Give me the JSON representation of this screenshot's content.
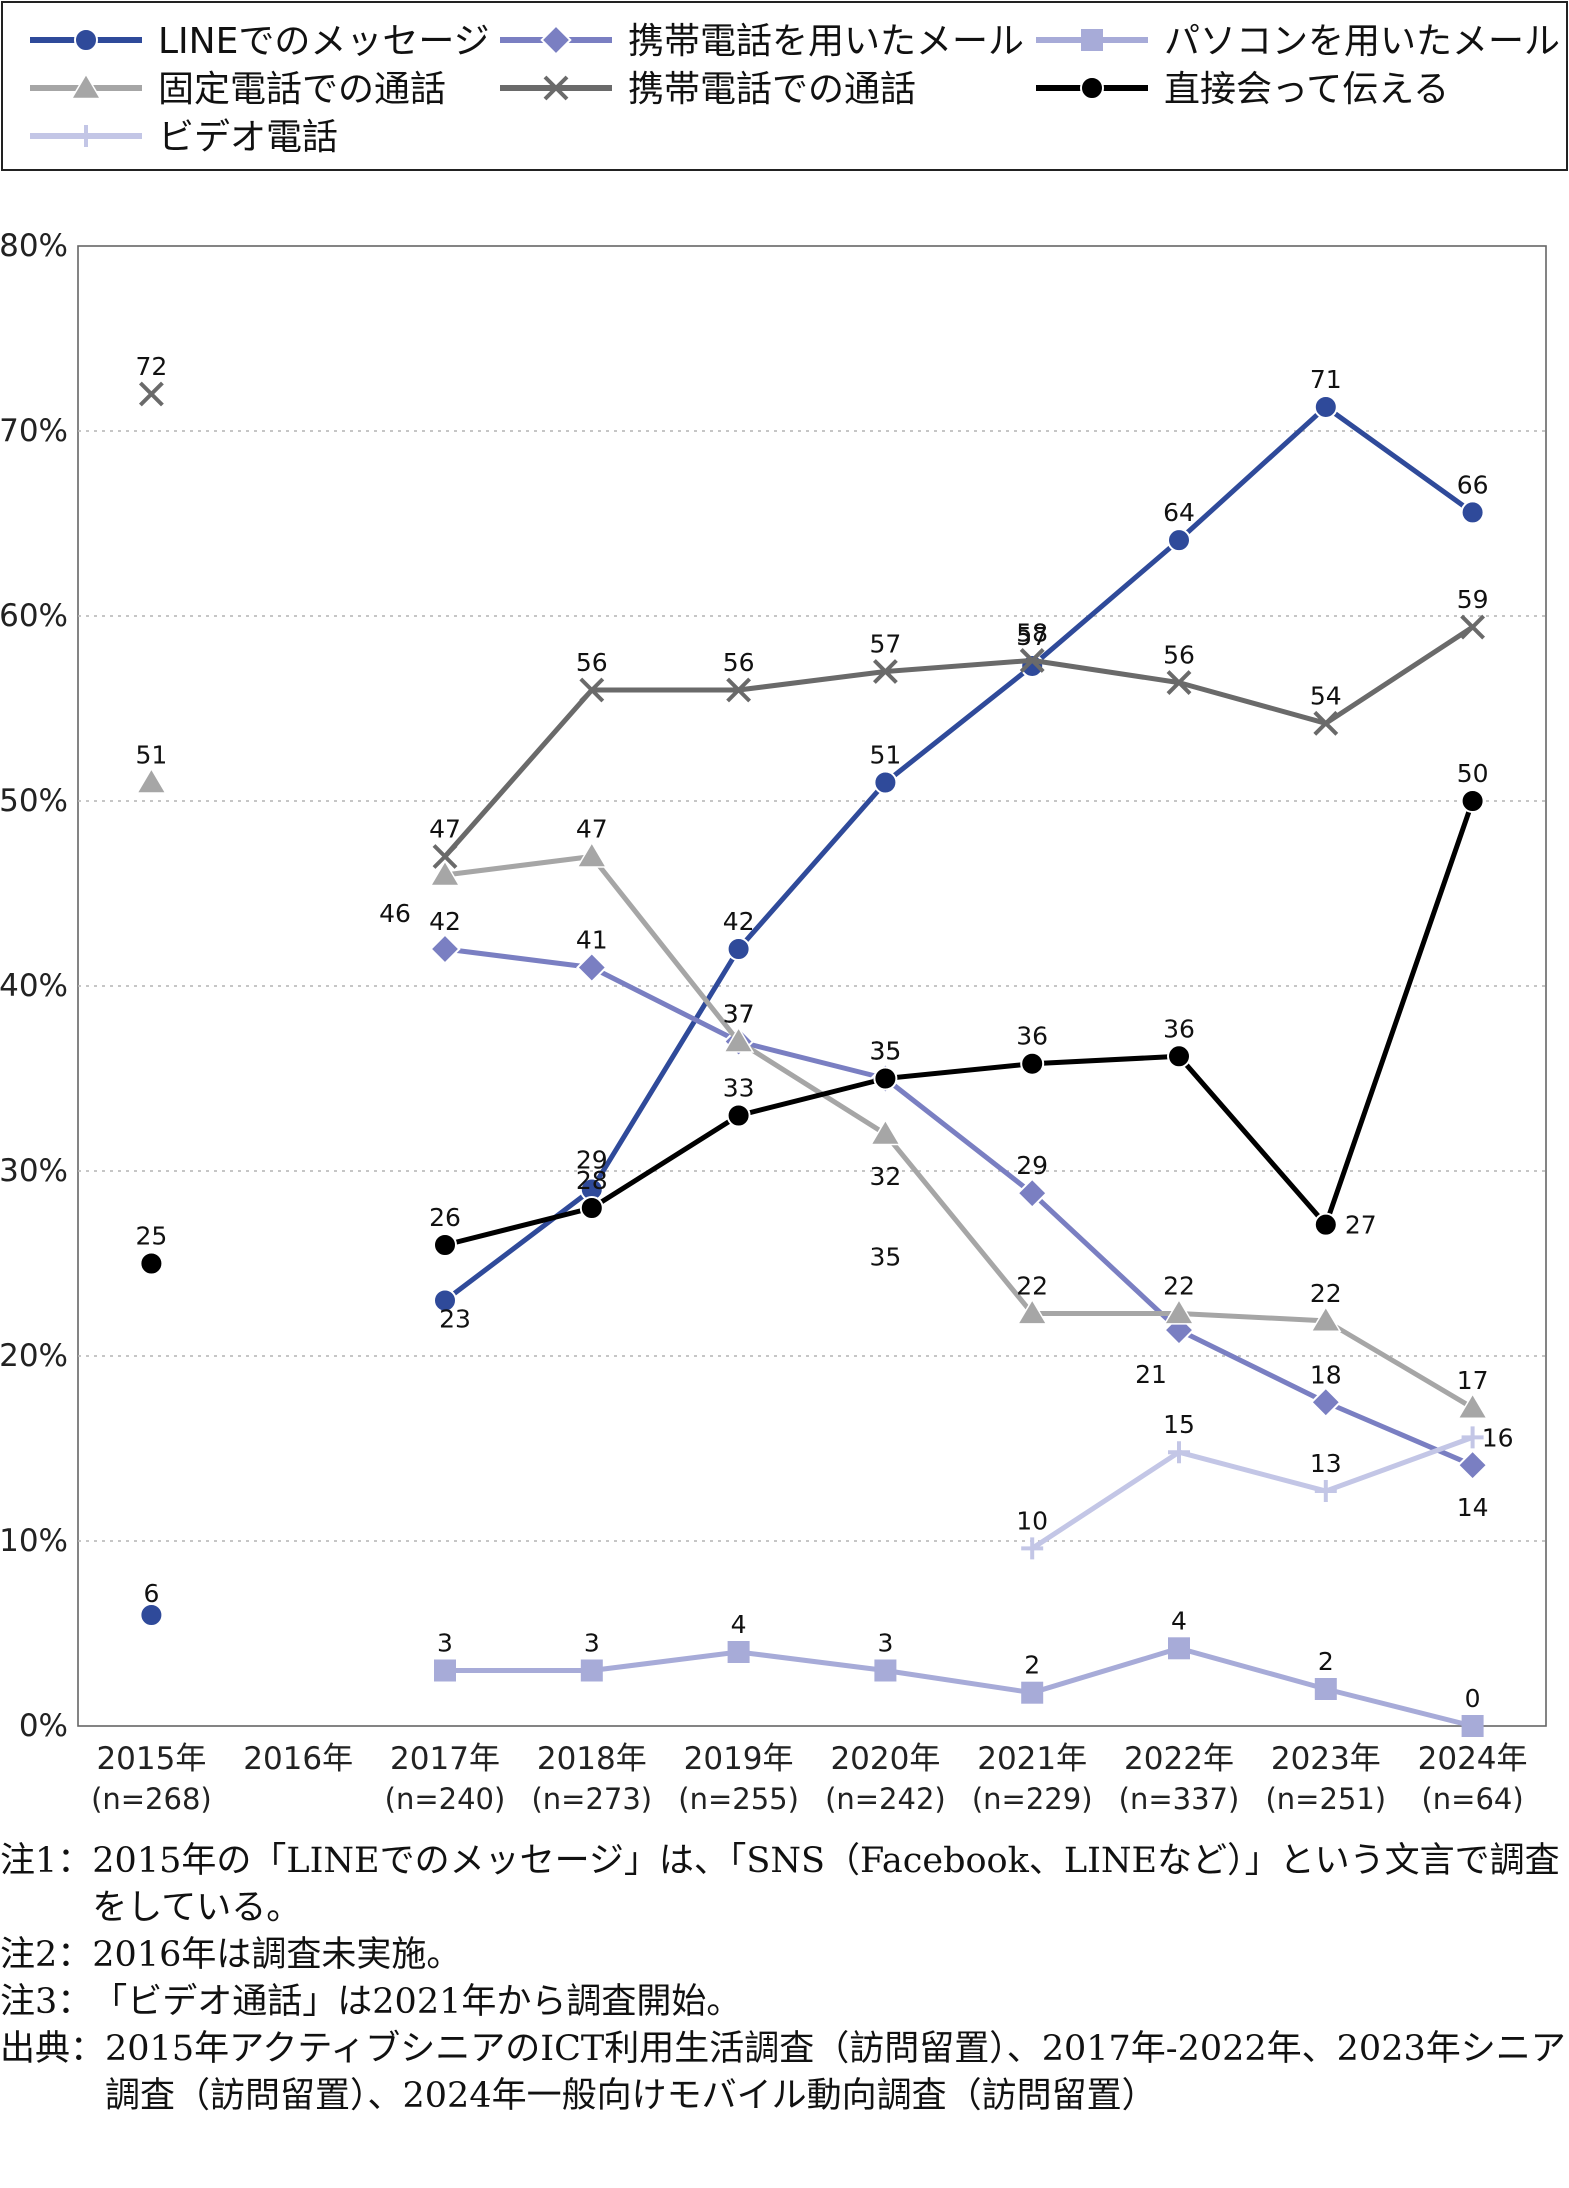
{
  "chart_data": {
    "type": "line",
    "categories": [
      "2015年",
      "2016年",
      "2017年",
      "2018年",
      "2019年",
      "2020年",
      "2021年",
      "2022年",
      "2023年",
      "2024年"
    ],
    "category_sublabels": [
      "(n=268)",
      "",
      "(n=240)",
      "(n=273)",
      "(n=255)",
      "(n=242)",
      "(n=229)",
      "(n=337)",
      "(n=251)",
      "(n=64)"
    ],
    "ylim": [
      0,
      80
    ],
    "y_ticks": [
      "0%",
      "10%",
      "20%",
      "30%",
      "40%",
      "50%",
      "60%",
      "70%",
      "80%"
    ],
    "grid": true,
    "legend_position": "top",
    "series": [
      {
        "name": "LINEでのメッセージ",
        "color": "#2f4a9a",
        "marker": "circle",
        "values": [
          6,
          null,
          23,
          29,
          42,
          51,
          57.3,
          64.1,
          71.3,
          65.6
        ],
        "labels": [
          "6",
          "",
          "23",
          "29",
          "42",
          "51",
          "57",
          "64",
          "71",
          "66"
        ]
      },
      {
        "name": "携帯電話を用いたメール",
        "color": "#7a7fc2",
        "marker": "diamond",
        "values": [
          null,
          null,
          42,
          41,
          37,
          35,
          28.8,
          21.4,
          17.5,
          14.1
        ],
        "labels": [
          "",
          "",
          "42",
          "41",
          "37",
          "35",
          "29",
          "21",
          "18",
          "14"
        ]
      },
      {
        "name": "パソコンを用いたメール",
        "color": "#a7abd8",
        "marker": "square",
        "values": [
          null,
          null,
          3,
          3,
          4,
          3,
          1.8,
          4.2,
          2,
          0
        ],
        "labels": [
          "",
          "",
          "3",
          "3",
          "4",
          "3",
          "2",
          "4",
          "2",
          "0"
        ]
      },
      {
        "name": "固定電話での通話",
        "color": "#a6a6a6",
        "marker": "triangle",
        "values": [
          51,
          null,
          46,
          47,
          37,
          32,
          22.3,
          22.3,
          21.9,
          17.2
        ],
        "labels": [
          "51",
          "",
          "46",
          "47",
          "37",
          "32",
          "22",
          "22",
          "22",
          "17"
        ]
      },
      {
        "name": "携帯電話での通話",
        "color": "#6a6a6a",
        "marker": "x",
        "values": [
          72,
          null,
          47,
          56,
          56,
          57,
          57.6,
          56.4,
          54.2,
          59.4
        ],
        "labels": [
          "72",
          "",
          "47",
          "56",
          "56",
          "57",
          "58",
          "56",
          "54",
          "59"
        ]
      },
      {
        "name": "直接会って伝える",
        "color": "#000000",
        "marker": "circle",
        "values": [
          25,
          null,
          26,
          28,
          33,
          35,
          35.8,
          36.2,
          27.1,
          50
        ],
        "labels": [
          "25",
          "",
          "26",
          "28",
          "33",
          "35",
          "36",
          "36",
          "27",
          "50"
        ]
      },
      {
        "name": "ビデオ電話",
        "color": "#c3c6e6",
        "marker": "plus",
        "values": [
          null,
          null,
          null,
          null,
          null,
          null,
          9.6,
          14.8,
          12.7,
          15.6
        ],
        "labels": [
          "",
          "",
          "",
          "",
          "",
          "",
          "10",
          "15",
          "13",
          "16"
        ]
      }
    ],
    "annotations": [
      {
        "text": "35"
      }
    ]
  },
  "notes": [
    {
      "key": "注1：",
      "text": "2015年の「LINEでのメッセージ」は、「SNS（Facebook、LINEなど）」という文言で調査をしている。"
    },
    {
      "key": "注2：",
      "text": "2016年は調査未実施。"
    },
    {
      "key": "注3：",
      "text": "「ビデオ通話」は2021年から調査開始。"
    },
    {
      "key": "出典：",
      "text": "2015年アクティブシニアのICT利用生活調査（訪問留置）、2017年-2022年、2023年シニア調査（訪問留置）、2024年一般向けモバイル動向調査（訪問留置）"
    }
  ]
}
